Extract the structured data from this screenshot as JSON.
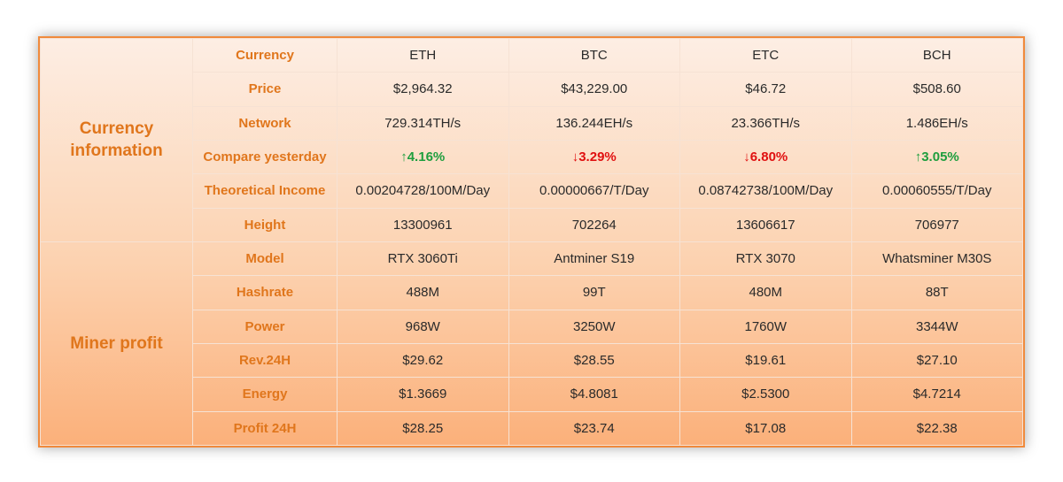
{
  "table": {
    "groups": [
      {
        "label": "Currency information",
        "rows": [
          {
            "label": "Currency",
            "cells": [
              "ETH",
              "BTC",
              "ETC",
              "BCH"
            ]
          },
          {
            "label": "Price",
            "cells": [
              "$2,964.32",
              "$43,229.00",
              "$46.72",
              "$508.60"
            ]
          },
          {
            "label": "Network",
            "cells": [
              "729.314TH/s",
              "136.244EH/s",
              "23.366TH/s",
              "1.486EH/s"
            ]
          },
          {
            "label": "Compare yesterday",
            "cells": [
              {
                "text": "↑4.16%",
                "color": "#1e9e3e"
              },
              {
                "text": "↓3.29%",
                "color": "#e01010"
              },
              {
                "text": "↓6.80%",
                "color": "#e01010"
              },
              {
                "text": "↑3.05%",
                "color": "#1e9e3e"
              }
            ]
          },
          {
            "label": "Theoretical Income",
            "cells": [
              "0.00204728/100M/Day",
              "0.00000667/T/Day",
              "0.08742738/100M/Day",
              "0.00060555/T/Day"
            ]
          },
          {
            "label": "Height",
            "cells": [
              "13300961",
              "702264",
              "13606617",
              "706977"
            ]
          }
        ]
      },
      {
        "label": "Miner profit",
        "rows": [
          {
            "label": "Model",
            "cells": [
              "RTX 3060Ti",
              "Antminer S19",
              "RTX 3070",
              "Whatsminer M30S"
            ]
          },
          {
            "label": "Hashrate",
            "cells": [
              "488M",
              "99T",
              "480M",
              "88T"
            ]
          },
          {
            "label": "Power",
            "cells": [
              "968W",
              "3250W",
              "1760W",
              "3344W"
            ]
          },
          {
            "label": "Rev.24H",
            "cells": [
              "$29.62",
              "$28.55",
              "$19.61",
              "$27.10"
            ]
          },
          {
            "label": "Energy",
            "cells": [
              "$1.3669",
              "$4.8081",
              "$2.5300",
              "$4.7214"
            ]
          },
          {
            "label": "Profit 24H",
            "cells": [
              "$28.25",
              "$23.74",
              "$17.08",
              "$22.38"
            ]
          }
        ]
      }
    ]
  }
}
